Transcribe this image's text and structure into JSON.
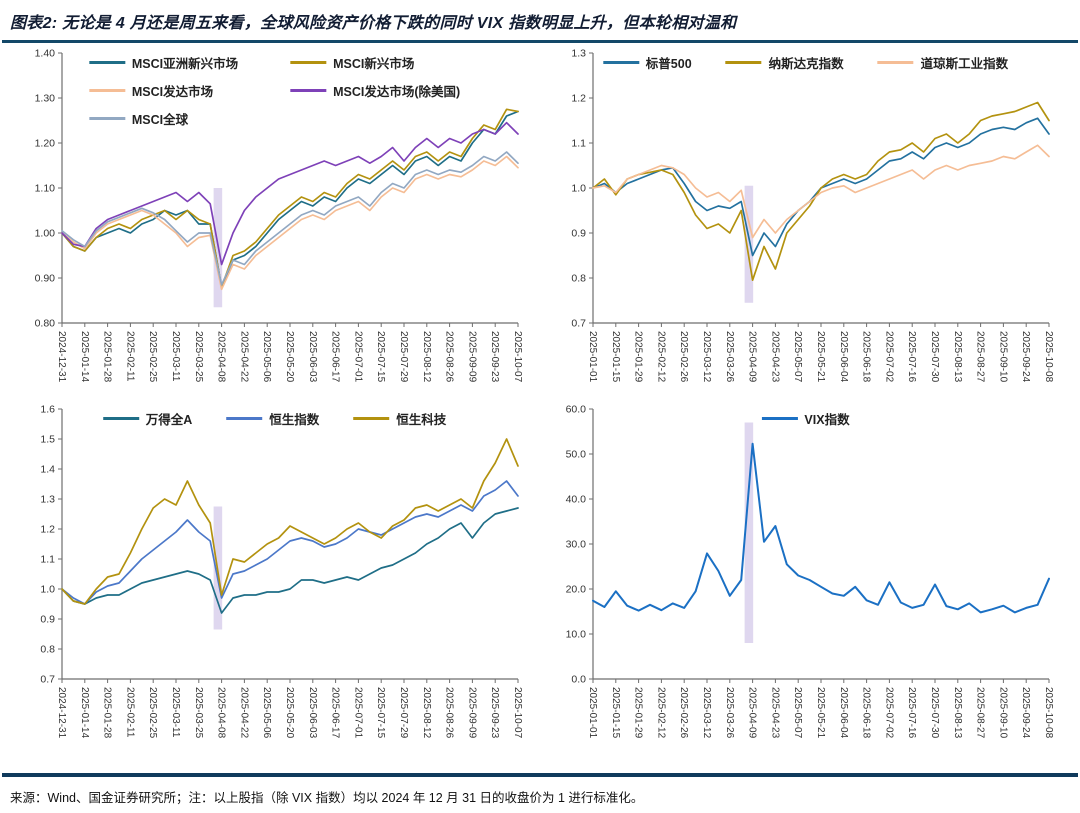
{
  "header": {
    "title": "图表2: 无论是 4 月还是周五来看，全球风险资产价格下跌的同时 VIX 指数明显上升，但本轮相对温和"
  },
  "footer": {
    "note": "来源：Wind、国金证券研究所；注：以上股指（除 VIX 指数）均以 2024 年 12 月 31 日的收盘价为 1 进行标准化。"
  },
  "colors": {
    "title_text": "#121d33",
    "title_rule": "#134868",
    "bottom_rule": "#0f3a5c",
    "axis": "#6e6e6e",
    "tick_label": "#333333",
    "crash_band": "#c9bce4"
  },
  "chart_data": [
    {
      "type": "line",
      "title": "",
      "xlabel": "",
      "ylabel": "",
      "grid": false,
      "legend_position": "top-center",
      "legend_columns": 2,
      "ylim": [
        0.8,
        1.4
      ],
      "yticks": [
        0.8,
        0.9,
        1.0,
        1.1,
        1.2,
        1.3,
        1.4
      ],
      "ydecimals": 2,
      "xticks": [
        "2024-12-31",
        "2025-01-14",
        "2025-01-28",
        "2025-02-11",
        "2025-02-25",
        "2025-03-11",
        "2025-03-25",
        "2025-04-08",
        "2025-04-22",
        "2025-05-06",
        "2025-05-20",
        "2025-06-03",
        "2025-06-17",
        "2025-07-01",
        "2025-07-15",
        "2025-07-29",
        "2025-08-12",
        "2025-08-26",
        "2025-09-09",
        "2025-09-23",
        "2025-10-07"
      ],
      "band": {
        "x0": 13.3,
        "x1": 14.05,
        "y0": 0.835,
        "y1": 1.1,
        "color": "#c9bce4"
      },
      "series": [
        {
          "name": "MSCI亚洲新兴市场",
          "color": "#1f6e87",
          "values": [
            1.0,
            0.97,
            0.96,
            0.99,
            1.0,
            1.01,
            1.0,
            1.02,
            1.03,
            1.05,
            1.04,
            1.05,
            1.02,
            1.02,
            0.88,
            0.94,
            0.95,
            0.97,
            1.0,
            1.03,
            1.05,
            1.07,
            1.06,
            1.08,
            1.07,
            1.1,
            1.12,
            1.11,
            1.13,
            1.15,
            1.13,
            1.16,
            1.17,
            1.15,
            1.17,
            1.16,
            1.2,
            1.23,
            1.22,
            1.26,
            1.27
          ]
        },
        {
          "name": "MSCI新兴市场",
          "color": "#b3920f",
          "values": [
            1.0,
            0.97,
            0.96,
            0.99,
            1.01,
            1.02,
            1.01,
            1.03,
            1.04,
            1.05,
            1.03,
            1.05,
            1.03,
            1.02,
            0.88,
            0.95,
            0.96,
            0.98,
            1.01,
            1.04,
            1.06,
            1.08,
            1.07,
            1.09,
            1.08,
            1.11,
            1.13,
            1.12,
            1.14,
            1.16,
            1.14,
            1.17,
            1.18,
            1.16,
            1.18,
            1.17,
            1.21,
            1.24,
            1.23,
            1.275,
            1.27
          ]
        },
        {
          "name": "MSCI发达市场",
          "color": "#f5bd95",
          "values": [
            1.0,
            0.98,
            0.965,
            1.0,
            1.02,
            1.03,
            1.04,
            1.05,
            1.04,
            1.02,
            1.0,
            0.97,
            0.99,
            0.995,
            0.875,
            0.93,
            0.92,
            0.95,
            0.97,
            0.99,
            1.01,
            1.03,
            1.04,
            1.03,
            1.05,
            1.06,
            1.07,
            1.05,
            1.08,
            1.1,
            1.09,
            1.12,
            1.13,
            1.12,
            1.13,
            1.125,
            1.14,
            1.16,
            1.15,
            1.17,
            1.145
          ]
        },
        {
          "name": "MSCI发达市场(除美国)",
          "color": "#7e41b8",
          "values": [
            1.0,
            0.975,
            0.97,
            1.01,
            1.03,
            1.04,
            1.05,
            1.06,
            1.07,
            1.08,
            1.09,
            1.07,
            1.09,
            1.065,
            0.93,
            1.0,
            1.05,
            1.08,
            1.1,
            1.12,
            1.13,
            1.14,
            1.15,
            1.16,
            1.15,
            1.16,
            1.17,
            1.155,
            1.17,
            1.19,
            1.16,
            1.19,
            1.21,
            1.19,
            1.21,
            1.2,
            1.22,
            1.23,
            1.22,
            1.245,
            1.22
          ]
        },
        {
          "name": "MSCI全球",
          "color": "#92a8c2",
          "values": [
            1.005,
            0.985,
            0.97,
            1.005,
            1.025,
            1.035,
            1.045,
            1.055,
            1.045,
            1.03,
            1.005,
            0.98,
            1.0,
            1.0,
            0.885,
            0.94,
            0.93,
            0.96,
            0.98,
            1.0,
            1.02,
            1.04,
            1.05,
            1.04,
            1.06,
            1.07,
            1.08,
            1.06,
            1.09,
            1.11,
            1.1,
            1.13,
            1.14,
            1.13,
            1.14,
            1.135,
            1.15,
            1.17,
            1.16,
            1.18,
            1.155
          ]
        }
      ]
    },
    {
      "type": "line",
      "title": "",
      "xlabel": "",
      "ylabel": "",
      "grid": false,
      "legend_position": "top-center",
      "legend_columns": 3,
      "ylim": [
        0.7,
        1.3
      ],
      "yticks": [
        0.7,
        0.8,
        0.9,
        1.0,
        1.1,
        1.2,
        1.3
      ],
      "ydecimals": 1,
      "xticks": [
        "2025-01-01",
        "2025-01-15",
        "2025-01-29",
        "2025-02-12",
        "2025-02-26",
        "2025-03-12",
        "2025-03-26",
        "2025-04-09",
        "2025-04-23",
        "2025-05-07",
        "2025-05-21",
        "2025-06-04",
        "2025-06-18",
        "2025-07-02",
        "2025-07-16",
        "2025-07-30",
        "2025-08-13",
        "2025-08-27",
        "2025-09-10",
        "2025-09-24",
        "2025-10-08"
      ],
      "band": {
        "x0": 13.3,
        "x1": 14.05,
        "y0": 0.745,
        "y1": 1.005,
        "color": "#c9bce4"
      },
      "series": [
        {
          "name": "标普500",
          "color": "#23719f",
          "values": [
            1.0,
            1.01,
            0.99,
            1.01,
            1.02,
            1.03,
            1.04,
            1.045,
            1.01,
            0.97,
            0.95,
            0.96,
            0.955,
            0.97,
            0.85,
            0.9,
            0.87,
            0.92,
            0.95,
            0.97,
            1.0,
            1.01,
            1.02,
            1.01,
            1.02,
            1.04,
            1.06,
            1.065,
            1.08,
            1.065,
            1.09,
            1.1,
            1.09,
            1.1,
            1.12,
            1.13,
            1.135,
            1.13,
            1.145,
            1.155,
            1.12
          ]
        },
        {
          "name": "纳斯达克指数",
          "color": "#b3920f",
          "values": [
            1.0,
            1.02,
            0.985,
            1.02,
            1.03,
            1.035,
            1.04,
            1.03,
            0.99,
            0.94,
            0.91,
            0.92,
            0.9,
            0.95,
            0.795,
            0.87,
            0.82,
            0.9,
            0.93,
            0.96,
            1.0,
            1.02,
            1.03,
            1.02,
            1.03,
            1.06,
            1.08,
            1.085,
            1.1,
            1.08,
            1.11,
            1.12,
            1.1,
            1.12,
            1.15,
            1.16,
            1.165,
            1.17,
            1.18,
            1.19,
            1.15
          ]
        },
        {
          "name": "道琼斯工业指数",
          "color": "#f5bd95",
          "values": [
            1.0,
            1.005,
            0.99,
            1.02,
            1.03,
            1.04,
            1.05,
            1.045,
            1.03,
            1.0,
            0.98,
            0.99,
            0.97,
            0.995,
            0.89,
            0.93,
            0.9,
            0.93,
            0.95,
            0.97,
            0.99,
            1.0,
            1.005,
            0.99,
            1.0,
            1.01,
            1.02,
            1.03,
            1.04,
            1.02,
            1.04,
            1.05,
            1.04,
            1.05,
            1.055,
            1.06,
            1.07,
            1.065,
            1.08,
            1.095,
            1.07
          ]
        }
      ]
    },
    {
      "type": "line",
      "title": "",
      "xlabel": "",
      "ylabel": "",
      "grid": false,
      "legend_position": "top-center",
      "legend_columns": 3,
      "ylim": [
        0.7,
        1.6
      ],
      "yticks": [
        0.7,
        0.8,
        0.9,
        1.0,
        1.1,
        1.2,
        1.3,
        1.4,
        1.5,
        1.6
      ],
      "ydecimals": 1,
      "xticks": [
        "2024-12-31",
        "2025-01-14",
        "2025-01-28",
        "2025-02-11",
        "2025-02-25",
        "2025-03-11",
        "2025-03-25",
        "2025-04-08",
        "2025-04-22",
        "2025-05-06",
        "2025-05-20",
        "2025-06-03",
        "2025-06-17",
        "2025-07-01",
        "2025-07-15",
        "2025-07-29",
        "2025-08-12",
        "2025-08-26",
        "2025-09-09",
        "2025-09-23",
        "2025-10-07"
      ],
      "band": {
        "x0": 13.3,
        "x1": 14.05,
        "y0": 0.865,
        "y1": 1.275,
        "color": "#c9bce4"
      },
      "series": [
        {
          "name": "万得全A",
          "color": "#1f6e87",
          "values": [
            1.0,
            0.96,
            0.95,
            0.97,
            0.98,
            0.98,
            1.0,
            1.02,
            1.03,
            1.04,
            1.05,
            1.06,
            1.05,
            1.03,
            0.92,
            0.97,
            0.98,
            0.98,
            0.99,
            0.99,
            1.0,
            1.03,
            1.03,
            1.02,
            1.03,
            1.04,
            1.03,
            1.05,
            1.07,
            1.08,
            1.1,
            1.12,
            1.15,
            1.17,
            1.2,
            1.22,
            1.17,
            1.22,
            1.25,
            1.26,
            1.27
          ]
        },
        {
          "name": "恒生指数",
          "color": "#4c78c9",
          "values": [
            1.0,
            0.97,
            0.95,
            0.99,
            1.01,
            1.02,
            1.06,
            1.1,
            1.13,
            1.16,
            1.19,
            1.23,
            1.19,
            1.16,
            0.97,
            1.05,
            1.06,
            1.08,
            1.1,
            1.13,
            1.16,
            1.17,
            1.16,
            1.14,
            1.15,
            1.17,
            1.2,
            1.19,
            1.18,
            1.2,
            1.22,
            1.24,
            1.25,
            1.24,
            1.26,
            1.28,
            1.26,
            1.31,
            1.33,
            1.36,
            1.31
          ]
        },
        {
          "name": "恒生科技",
          "color": "#b3920f",
          "values": [
            1.0,
            0.96,
            0.95,
            1.0,
            1.04,
            1.05,
            1.12,
            1.2,
            1.27,
            1.3,
            1.28,
            1.36,
            1.28,
            1.22,
            0.98,
            1.1,
            1.09,
            1.12,
            1.15,
            1.17,
            1.21,
            1.19,
            1.17,
            1.15,
            1.17,
            1.2,
            1.22,
            1.19,
            1.17,
            1.21,
            1.23,
            1.27,
            1.28,
            1.26,
            1.28,
            1.3,
            1.27,
            1.36,
            1.42,
            1.5,
            1.41
          ]
        }
      ]
    },
    {
      "type": "line",
      "title": "",
      "xlabel": "",
      "ylabel": "",
      "grid": false,
      "legend_position": "top-center",
      "legend_columns": 1,
      "ylim": [
        0,
        60
      ],
      "yticks": [
        0,
        10,
        20,
        30,
        40,
        50,
        60
      ],
      "ydecimals": 1,
      "xticks": [
        "2025-01-01",
        "2025-01-15",
        "2025-01-29",
        "2025-02-12",
        "2025-02-26",
        "2025-03-12",
        "2025-03-26",
        "2025-04-09",
        "2025-04-23",
        "2025-05-07",
        "2025-05-21",
        "2025-06-04",
        "2025-06-18",
        "2025-07-02",
        "2025-07-16",
        "2025-07-30",
        "2025-08-13",
        "2025-08-27",
        "2025-09-10",
        "2025-09-24",
        "2025-10-08"
      ],
      "band": {
        "x0": 13.3,
        "x1": 14.05,
        "y0": 8,
        "y1": 57,
        "color": "#c9bce4"
      },
      "series": [
        {
          "name": "VIX指数",
          "color": "#1b70c4",
          "values": [
            17.4,
            16.0,
            19.5,
            16.3,
            15.2,
            16.5,
            15.3,
            16.8,
            15.8,
            19.5,
            27.9,
            24.0,
            18.5,
            22.0,
            52.3,
            30.5,
            34.0,
            25.5,
            23.0,
            22.0,
            20.5,
            19.0,
            18.5,
            20.5,
            17.5,
            16.5,
            21.5,
            17.0,
            15.8,
            16.5,
            21.0,
            16.2,
            15.5,
            16.8,
            14.8,
            15.5,
            16.3,
            14.8,
            15.8,
            16.5,
            22.3
          ]
        }
      ]
    }
  ]
}
